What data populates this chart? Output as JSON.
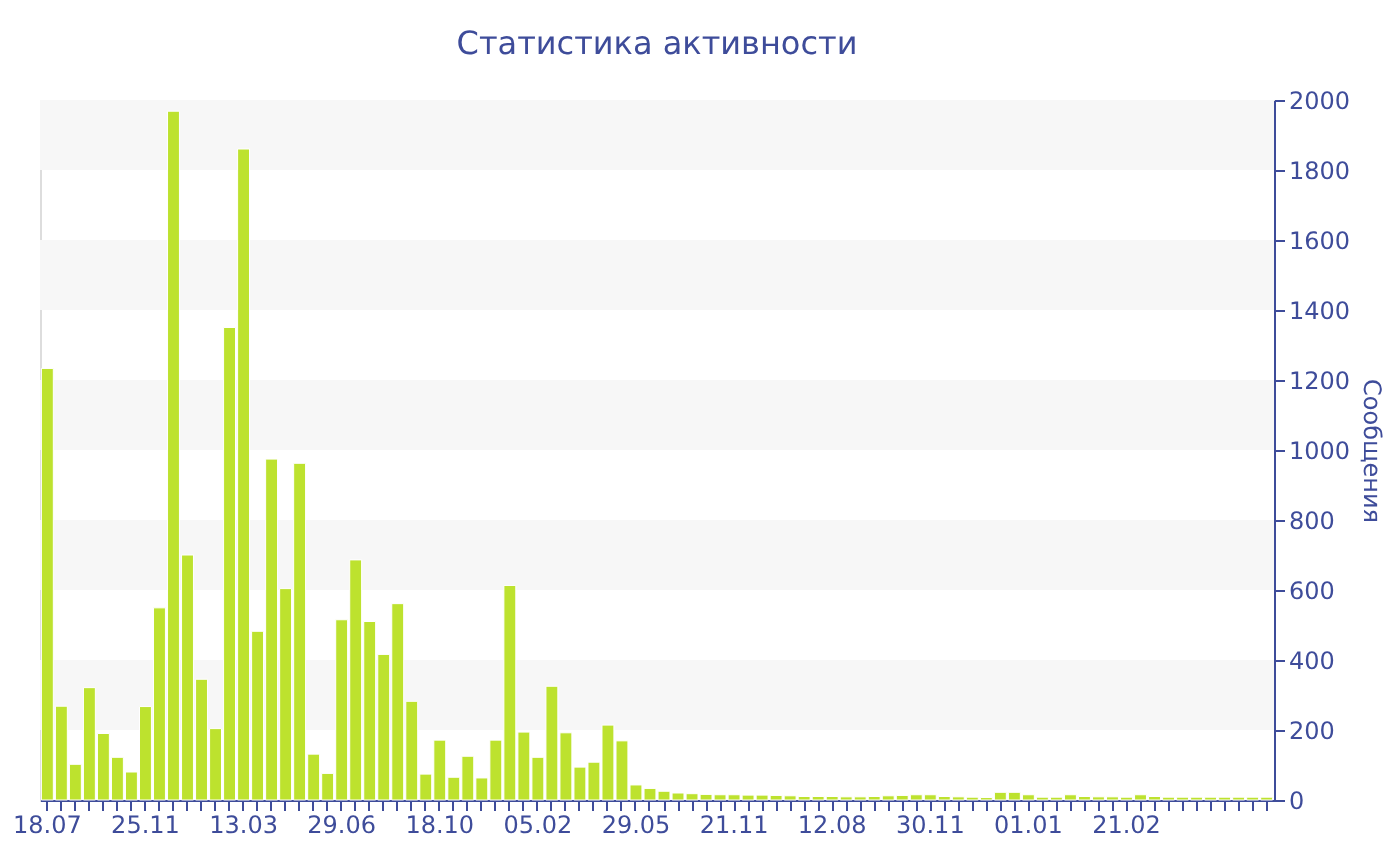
{
  "chart_data": {
    "type": "bar",
    "title": "Статистика активности",
    "ylabel": "Сообщения",
    "categories": [
      "18.07",
      null,
      null,
      null,
      null,
      null,
      null,
      "25.11",
      null,
      null,
      null,
      null,
      null,
      null,
      "13.03",
      null,
      null,
      null,
      null,
      null,
      null,
      "29.06",
      null,
      null,
      null,
      null,
      null,
      null,
      "18.10",
      null,
      null,
      null,
      null,
      null,
      null,
      "05.02",
      null,
      null,
      null,
      null,
      null,
      null,
      "29.05",
      null,
      null,
      null,
      null,
      null,
      null,
      "21.11",
      null,
      null,
      null,
      null,
      null,
      null,
      "12.08",
      null,
      null,
      null,
      null,
      null,
      null,
      "30.11",
      null,
      null,
      null,
      null,
      null,
      null,
      "01.01",
      null,
      null,
      null,
      null,
      null,
      null,
      "21.02",
      null,
      null,
      null,
      null,
      null,
      null,
      null,
      null,
      null,
      null
    ],
    "values": [
      1233,
      268,
      102,
      321,
      190,
      122,
      80,
      267,
      549,
      1968,
      700,
      345,
      204,
      1350,
      1860,
      482,
      974,
      604,
      962,
      131,
      76,
      515,
      686,
      510,
      416,
      561,
      282,
      74,
      171,
      65,
      125,
      63,
      171,
      613,
      194,
      122,
      325,
      192,
      94,
      108,
      214,
      169,
      43,
      33,
      25,
      20,
      18,
      16,
      15,
      15,
      14,
      14,
      13,
      12,
      10,
      10,
      10,
      9,
      9,
      10,
      12,
      13,
      15,
      15,
      10,
      9,
      8,
      7,
      22,
      22,
      15,
      8,
      8,
      15,
      10,
      9,
      9,
      8,
      15,
      10,
      8,
      8,
      8,
      8,
      8,
      8,
      8,
      8
    ],
    "color": "#bde22e",
    "ylim": [
      0,
      2000
    ],
    "yticks": [
      0,
      200,
      400,
      600,
      800,
      1000,
      1200,
      1400,
      1600,
      1800,
      2000
    ],
    "bands": [
      {
        "axis": "y",
        "from": 200,
        "to": 400,
        "color": "#f7f7f7"
      },
      {
        "axis": "y",
        "from": 600,
        "to": 800,
        "color": "#f7f7f7"
      },
      {
        "axis": "y",
        "from": 1000,
        "to": 1200,
        "color": "#f7f7f7"
      },
      {
        "axis": "y",
        "from": 1400,
        "to": 1600,
        "color": "#f7f7f7"
      },
      {
        "axis": "y",
        "from": 1800,
        "to": 2000,
        "color": "#f7f7f7"
      }
    ]
  }
}
